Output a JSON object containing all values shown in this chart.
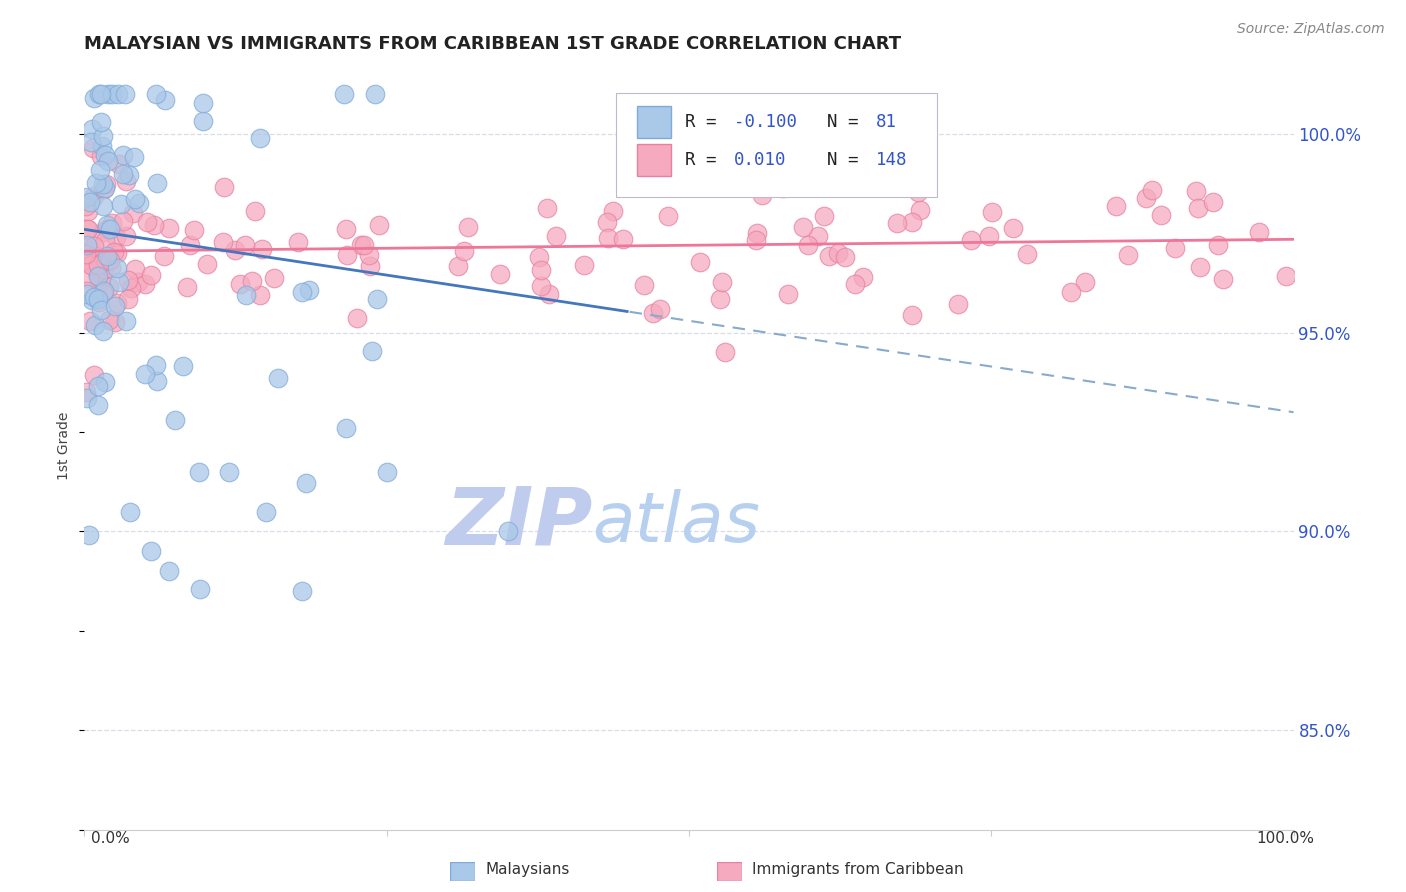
{
  "title": "MALAYSIAN VS IMMIGRANTS FROM CARIBBEAN 1ST GRADE CORRELATION CHART",
  "source_text": "Source: ZipAtlas.com",
  "ylabel": "1st Grade",
  "yaxis_ticks": [
    85.0,
    90.0,
    95.0,
    100.0
  ],
  "xmin": 0.0,
  "xmax": 100.0,
  "ymin": 82.5,
  "ymax": 101.8,
  "malaysian_color": "#aac8e8",
  "caribbean_color": "#f5aabf",
  "malaysian_edge": "#80aad8",
  "caribbean_edge": "#e880a0",
  "trend_blue_solid": "#4477bb",
  "trend_pink_solid": "#ee7799",
  "trend_blue_dashed": "#88aacc",
  "legend_R1": "-0.100",
  "legend_N1": "81",
  "legend_R2": "0.010",
  "legend_N2": "148",
  "r_value_color": "#3355cc",
  "n_value_color": "#3355cc",
  "watermark_zip": "ZIP",
  "watermark_atlas": "atlas",
  "watermark_color_zip": "#c0ccee",
  "watermark_color_atlas": "#b8d0f0",
  "watermark_fontsize": 58,
  "title_fontsize": 13,
  "grid_color": "#d8dde8",
  "dot_size": 180,
  "dot_alpha": 0.75,
  "dot_linewidth": 0.8,
  "blue_trend_x0": 0.0,
  "blue_trend_y0": 97.6,
  "blue_trend_x1": 100.0,
  "blue_trend_y1": 93.0,
  "blue_solid_end_x": 45.0,
  "pink_trend_x0": 0.0,
  "pink_trend_y0": 97.05,
  "pink_trend_x1": 100.0,
  "pink_trend_y1": 97.35,
  "pink_solid_end_x": 100.0
}
